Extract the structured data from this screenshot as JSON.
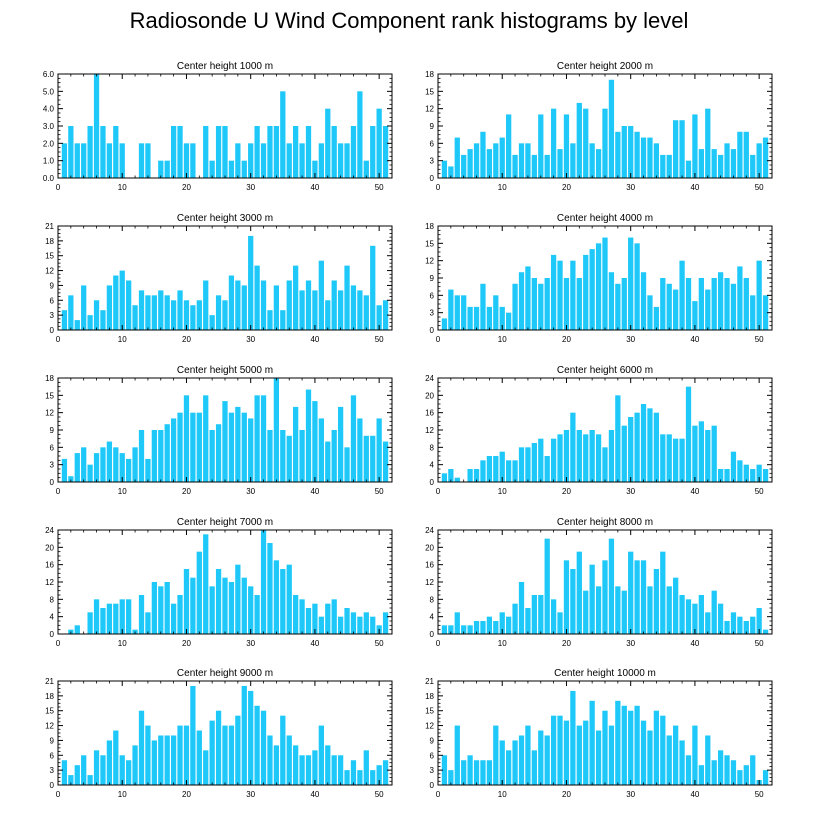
{
  "title": "Radiosonde U Wind Component rank histograms by level",
  "colors": {
    "bar": "#1ec8f8",
    "axis": "#000000",
    "background": "#ffffff"
  },
  "chart_data": [
    {
      "type": "bar",
      "title": "Center height 1000 m",
      "x": [
        1,
        2,
        3,
        4,
        5,
        6,
        7,
        8,
        9,
        10,
        11,
        12,
        13,
        14,
        15,
        16,
        17,
        18,
        19,
        20,
        21,
        22,
        23,
        24,
        25,
        26,
        27,
        28,
        29,
        30,
        31,
        32,
        33,
        34,
        35,
        36,
        37,
        38,
        39,
        40,
        41,
        42,
        43,
        44,
        45,
        46,
        47,
        48,
        49,
        50,
        51
      ],
      "values": [
        2,
        3,
        2,
        2,
        3,
        6,
        3,
        2,
        3,
        2,
        0,
        0,
        2,
        2,
        0,
        1,
        1,
        3,
        3,
        2,
        2,
        0,
        3,
        1,
        3,
        3,
        1,
        2,
        1,
        2,
        3,
        2,
        3,
        3,
        5,
        2,
        3,
        2,
        3,
        1,
        2,
        4,
        3,
        2,
        2,
        3,
        5,
        1,
        3,
        4,
        3
      ],
      "xlim": [
        0,
        52
      ],
      "ylim": [
        0,
        6
      ],
      "yticks": [
        0,
        1,
        2,
        3,
        4,
        5,
        6
      ],
      "ytick_labels": [
        "0.0",
        "1.0",
        "2.0",
        "3.0",
        "4.0",
        "5.0",
        "6.0"
      ],
      "xticks": [
        0,
        10,
        20,
        30,
        40,
        50
      ]
    },
    {
      "type": "bar",
      "title": "Center height 2000 m",
      "x": [
        1,
        2,
        3,
        4,
        5,
        6,
        7,
        8,
        9,
        10,
        11,
        12,
        13,
        14,
        15,
        16,
        17,
        18,
        19,
        20,
        21,
        22,
        23,
        24,
        25,
        26,
        27,
        28,
        29,
        30,
        31,
        32,
        33,
        34,
        35,
        36,
        37,
        38,
        39,
        40,
        41,
        42,
        43,
        44,
        45,
        46,
        47,
        48,
        49,
        50,
        51
      ],
      "values": [
        3,
        2,
        7,
        4,
        5,
        6,
        8,
        5,
        6,
        7,
        11,
        4,
        6,
        6,
        4,
        11,
        4,
        12,
        5,
        11,
        6,
        13,
        12,
        6,
        5,
        12,
        17,
        8,
        9,
        9,
        8,
        7,
        7,
        6,
        4,
        4,
        10,
        10,
        3,
        11,
        5,
        12,
        5,
        4,
        6,
        5,
        8,
        8,
        4,
        6,
        7
      ],
      "xlim": [
        0,
        52
      ],
      "ylim": [
        0,
        18
      ],
      "yticks": [
        0,
        3,
        6,
        9,
        12,
        15,
        18
      ],
      "ytick_labels": [
        "0",
        "3",
        "6",
        "9",
        "12",
        "15",
        "18"
      ],
      "xticks": [
        0,
        10,
        20,
        30,
        40,
        50
      ]
    },
    {
      "type": "bar",
      "title": "Center height 3000 m",
      "x": [
        1,
        2,
        3,
        4,
        5,
        6,
        7,
        8,
        9,
        10,
        11,
        12,
        13,
        14,
        15,
        16,
        17,
        18,
        19,
        20,
        21,
        22,
        23,
        24,
        25,
        26,
        27,
        28,
        29,
        30,
        31,
        32,
        33,
        34,
        35,
        36,
        37,
        38,
        39,
        40,
        41,
        42,
        43,
        44,
        45,
        46,
        47,
        48,
        49,
        50,
        51
      ],
      "values": [
        4,
        7,
        2,
        9,
        3,
        6,
        4,
        9,
        11,
        12,
        10,
        5,
        8,
        7,
        7,
        8,
        7,
        6,
        8,
        6,
        5,
        6,
        10,
        3,
        7,
        6,
        11,
        10,
        9,
        19,
        13,
        10,
        4,
        9,
        4,
        10,
        13,
        8,
        10,
        8,
        14,
        6,
        10,
        8,
        13,
        9,
        8,
        7,
        17,
        5,
        6
      ],
      "xlim": [
        0,
        52
      ],
      "ylim": [
        0,
        21
      ],
      "yticks": [
        0,
        3,
        6,
        9,
        12,
        15,
        18,
        21
      ],
      "ytick_labels": [
        "0",
        "3",
        "6",
        "9",
        "12",
        "15",
        "18",
        "21"
      ],
      "xticks": [
        0,
        10,
        20,
        30,
        40,
        50
      ]
    },
    {
      "type": "bar",
      "title": "Center height 4000 m",
      "x": [
        1,
        2,
        3,
        4,
        5,
        6,
        7,
        8,
        9,
        10,
        11,
        12,
        13,
        14,
        15,
        16,
        17,
        18,
        19,
        20,
        21,
        22,
        23,
        24,
        25,
        26,
        27,
        28,
        29,
        30,
        31,
        32,
        33,
        34,
        35,
        36,
        37,
        38,
        39,
        40,
        41,
        42,
        43,
        44,
        45,
        46,
        47,
        48,
        49,
        50,
        51
      ],
      "values": [
        2,
        7,
        6,
        6,
        4,
        4,
        8,
        4,
        6,
        4,
        3,
        8,
        10,
        11,
        9,
        8,
        9,
        13,
        12,
        9,
        12,
        9,
        13,
        14,
        15,
        16,
        10,
        8,
        9,
        16,
        15,
        10,
        6,
        4,
        9,
        8,
        7,
        12,
        9,
        5,
        9,
        7,
        9,
        10,
        9,
        8,
        11,
        9,
        6,
        12,
        6
      ],
      "xlim": [
        0,
        52
      ],
      "ylim": [
        0,
        18
      ],
      "yticks": [
        0,
        3,
        6,
        9,
        12,
        15,
        18
      ],
      "ytick_labels": [
        "0",
        "3",
        "6",
        "9",
        "12",
        "15",
        "18"
      ],
      "xticks": [
        0,
        10,
        20,
        30,
        40,
        50
      ]
    },
    {
      "type": "bar",
      "title": "Center height 5000 m",
      "x": [
        1,
        2,
        3,
        4,
        5,
        6,
        7,
        8,
        9,
        10,
        11,
        12,
        13,
        14,
        15,
        16,
        17,
        18,
        19,
        20,
        21,
        22,
        23,
        24,
        25,
        26,
        27,
        28,
        29,
        30,
        31,
        32,
        33,
        34,
        35,
        36,
        37,
        38,
        39,
        40,
        41,
        42,
        43,
        44,
        45,
        46,
        47,
        48,
        49,
        50,
        51
      ],
      "values": [
        4,
        1,
        5,
        6,
        3,
        5,
        6,
        7,
        6,
        5,
        4,
        6,
        9,
        4,
        9,
        9,
        10,
        11,
        12,
        15,
        12,
        12,
        15,
        9,
        10,
        14,
        12,
        13,
        12,
        11,
        15,
        15,
        9,
        18,
        9,
        8,
        13,
        9,
        16,
        14,
        11,
        7,
        9,
        13,
        6,
        15,
        11,
        8,
        8,
        11,
        7
      ],
      "xlim": [
        0,
        52
      ],
      "ylim": [
        0,
        18
      ],
      "yticks": [
        0,
        3,
        6,
        9,
        12,
        15,
        18
      ],
      "ytick_labels": [
        "0",
        "3",
        "6",
        "9",
        "12",
        "15",
        "18"
      ],
      "xticks": [
        0,
        10,
        20,
        30,
        40,
        50
      ]
    },
    {
      "type": "bar",
      "title": "Center height 6000 m",
      "x": [
        1,
        2,
        3,
        4,
        5,
        6,
        7,
        8,
        9,
        10,
        11,
        12,
        13,
        14,
        15,
        16,
        17,
        18,
        19,
        20,
        21,
        22,
        23,
        24,
        25,
        26,
        27,
        28,
        29,
        30,
        31,
        32,
        33,
        34,
        35,
        36,
        37,
        38,
        39,
        40,
        41,
        42,
        43,
        44,
        45,
        46,
        47,
        48,
        49,
        50,
        51
      ],
      "values": [
        2,
        3,
        1,
        0,
        3,
        3,
        5,
        6,
        6,
        7,
        5,
        5,
        8,
        8,
        9,
        10,
        6,
        10,
        11,
        12,
        16,
        12,
        11,
        12,
        11,
        8,
        12,
        20,
        13,
        15,
        16,
        18,
        17,
        16,
        11,
        11,
        10,
        10,
        22,
        13,
        14,
        12,
        13,
        3,
        3,
        7,
        5,
        4,
        3,
        4,
        3
      ],
      "xlim": [
        0,
        52
      ],
      "ylim": [
        0,
        24
      ],
      "yticks": [
        0,
        4,
        8,
        12,
        16,
        20,
        24
      ],
      "ytick_labels": [
        "0",
        "4",
        "8",
        "12",
        "16",
        "20",
        "24"
      ],
      "xticks": [
        0,
        10,
        20,
        30,
        40,
        50
      ]
    },
    {
      "type": "bar",
      "title": "Center height 7000 m",
      "x": [
        1,
        2,
        3,
        4,
        5,
        6,
        7,
        8,
        9,
        10,
        11,
        12,
        13,
        14,
        15,
        16,
        17,
        18,
        19,
        20,
        21,
        22,
        23,
        24,
        25,
        26,
        27,
        28,
        29,
        30,
        31,
        32,
        33,
        34,
        35,
        36,
        37,
        38,
        39,
        40,
        41,
        42,
        43,
        44,
        45,
        46,
        47,
        48,
        49,
        50,
        51
      ],
      "values": [
        0,
        1,
        2,
        0,
        5,
        8,
        6,
        7,
        7,
        8,
        8,
        1,
        9,
        5,
        12,
        11,
        12,
        7,
        9,
        15,
        13,
        19,
        23,
        11,
        15,
        13,
        12,
        16,
        13,
        11,
        9,
        24,
        21,
        17,
        15,
        16,
        9,
        8,
        6,
        7,
        4,
        7,
        8,
        4,
        6,
        5,
        4,
        5,
        4,
        2,
        5
      ],
      "xlim": [
        0,
        52
      ],
      "ylim": [
        0,
        24
      ],
      "yticks": [
        0,
        4,
        8,
        12,
        16,
        20,
        24
      ],
      "ytick_labels": [
        "0",
        "4",
        "8",
        "12",
        "16",
        "20",
        "24"
      ],
      "xticks": [
        0,
        10,
        20,
        30,
        40,
        50
      ]
    },
    {
      "type": "bar",
      "title": "Center height 8000 m",
      "x": [
        1,
        2,
        3,
        4,
        5,
        6,
        7,
        8,
        9,
        10,
        11,
        12,
        13,
        14,
        15,
        16,
        17,
        18,
        19,
        20,
        21,
        22,
        23,
        24,
        25,
        26,
        27,
        28,
        29,
        30,
        31,
        32,
        33,
        34,
        35,
        36,
        37,
        38,
        39,
        40,
        41,
        42,
        43,
        44,
        45,
        46,
        47,
        48,
        49,
        50,
        51
      ],
      "values": [
        2,
        2,
        5,
        2,
        2,
        3,
        3,
        4,
        3,
        5,
        4,
        7,
        12,
        6,
        9,
        9,
        22,
        8,
        5,
        17,
        15,
        19,
        10,
        16,
        11,
        17,
        22,
        11,
        10,
        19,
        17,
        17,
        11,
        15,
        19,
        11,
        13,
        9,
        8,
        7,
        9,
        5,
        10,
        7,
        3,
        5,
        4,
        3,
        4,
        6,
        1
      ],
      "xlim": [
        0,
        52
      ],
      "ylim": [
        0,
        24
      ],
      "yticks": [
        0,
        4,
        8,
        12,
        16,
        20,
        24
      ],
      "ytick_labels": [
        "0",
        "4",
        "8",
        "12",
        "16",
        "20",
        "24"
      ],
      "xticks": [
        0,
        10,
        20,
        30,
        40,
        50
      ]
    },
    {
      "type": "bar",
      "title": "Center height 9000 m",
      "x": [
        1,
        2,
        3,
        4,
        5,
        6,
        7,
        8,
        9,
        10,
        11,
        12,
        13,
        14,
        15,
        16,
        17,
        18,
        19,
        20,
        21,
        22,
        23,
        24,
        25,
        26,
        27,
        28,
        29,
        30,
        31,
        32,
        33,
        34,
        35,
        36,
        37,
        38,
        39,
        40,
        41,
        42,
        43,
        44,
        45,
        46,
        47,
        48,
        49,
        50,
        51
      ],
      "values": [
        5,
        2,
        4,
        6,
        2,
        7,
        6,
        9,
        11,
        6,
        5,
        8,
        15,
        12,
        9,
        10,
        10,
        10,
        12,
        12,
        20,
        11,
        7,
        13,
        15,
        12,
        12,
        14,
        20,
        19,
        16,
        15,
        10,
        8,
        14,
        10,
        8,
        6,
        6,
        7,
        12,
        8,
        6,
        6,
        3,
        5,
        3,
        7,
        3,
        4,
        5
      ],
      "xlim": [
        0,
        52
      ],
      "ylim": [
        0,
        21
      ],
      "yticks": [
        0,
        3,
        6,
        9,
        12,
        15,
        18,
        21
      ],
      "ytick_labels": [
        "0",
        "3",
        "6",
        "9",
        "12",
        "15",
        "18",
        "21"
      ],
      "xticks": [
        0,
        10,
        20,
        30,
        40,
        50
      ]
    },
    {
      "type": "bar",
      "title": "Center height 10000 m",
      "x": [
        1,
        2,
        3,
        4,
        5,
        6,
        7,
        8,
        9,
        10,
        11,
        12,
        13,
        14,
        15,
        16,
        17,
        18,
        19,
        20,
        21,
        22,
        23,
        24,
        25,
        26,
        27,
        28,
        29,
        30,
        31,
        32,
        33,
        34,
        35,
        36,
        37,
        38,
        39,
        40,
        41,
        42,
        43,
        44,
        45,
        46,
        47,
        48,
        49,
        50,
        51
      ],
      "values": [
        6,
        3,
        12,
        5,
        6,
        5,
        5,
        5,
        12,
        9,
        7,
        9,
        10,
        12,
        7,
        11,
        10,
        14,
        14,
        13,
        19,
        12,
        13,
        17,
        11,
        15,
        12,
        17,
        16,
        15,
        16,
        13,
        11,
        15,
        14,
        10,
        12,
        9,
        6,
        12,
        4,
        10,
        5,
        7,
        6,
        5,
        3,
        4,
        6,
        1,
        3
      ],
      "xlim": [
        0,
        52
      ],
      "ylim": [
        0,
        21
      ],
      "yticks": [
        0,
        3,
        6,
        9,
        12,
        15,
        18,
        21
      ],
      "ytick_labels": [
        "0",
        "3",
        "6",
        "9",
        "12",
        "15",
        "18",
        "21"
      ],
      "xticks": [
        0,
        10,
        20,
        30,
        40,
        50
      ]
    }
  ]
}
